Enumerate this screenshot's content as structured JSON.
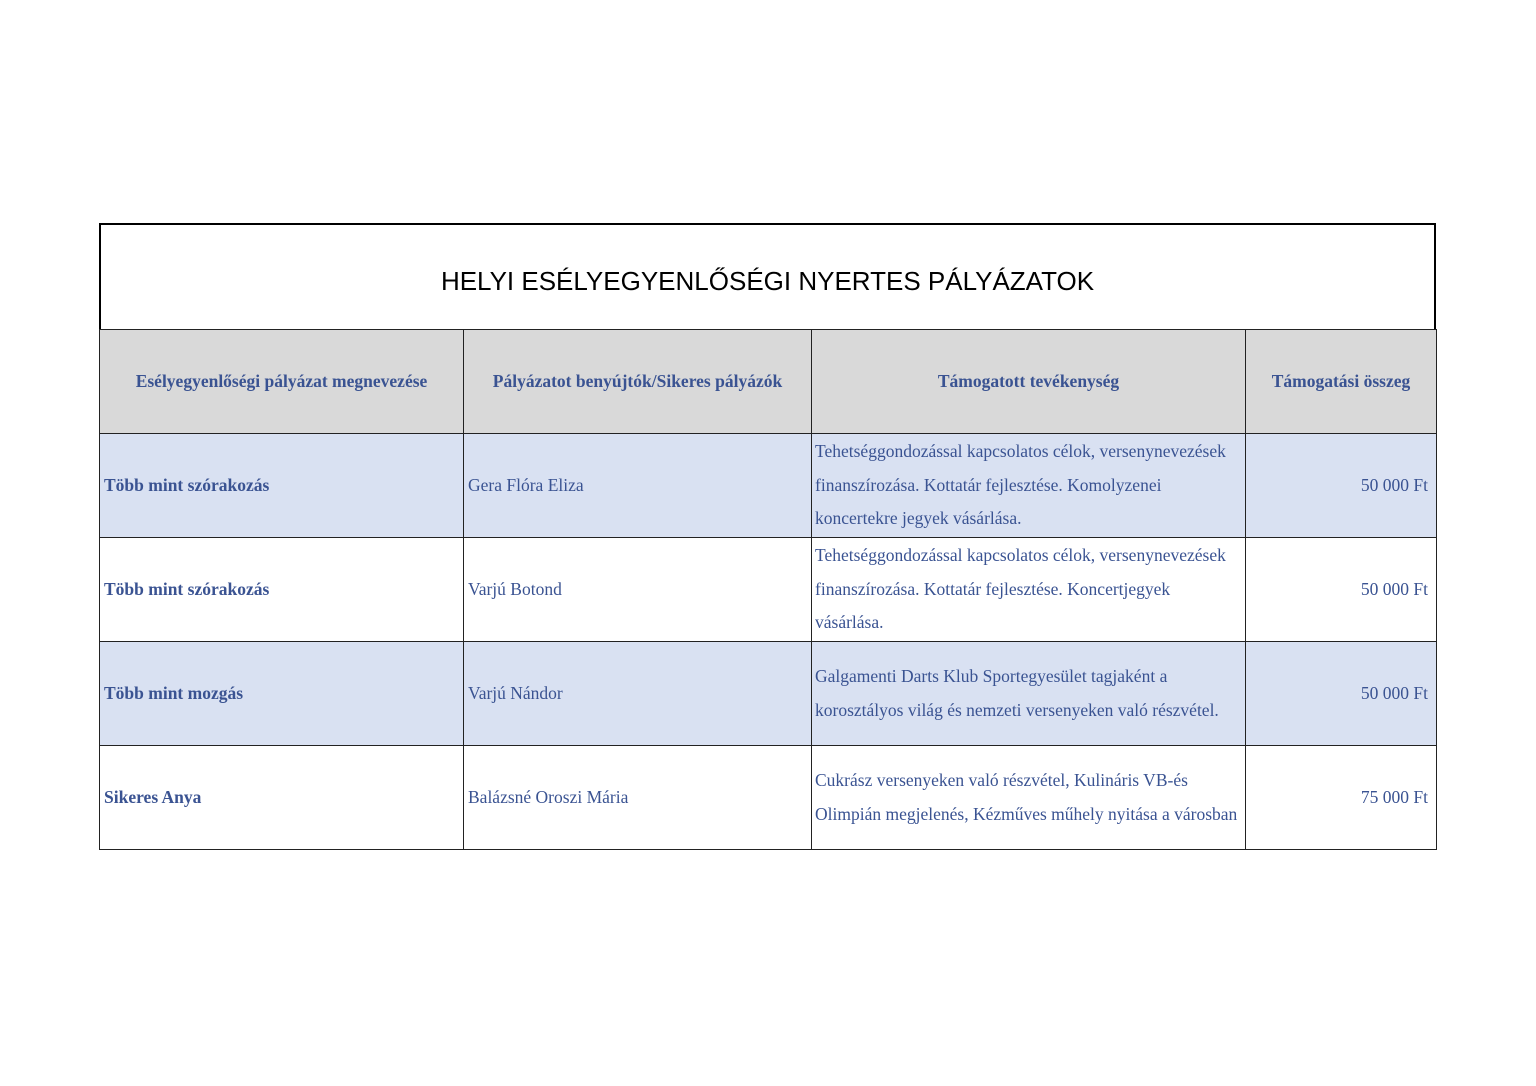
{
  "title": "HELYI ESÉLYEGYENLŐSÉGI NYERTES PÁLYÁZATOK",
  "table": {
    "headers": [
      "Esélyegyenlőségi pályázat megnevezése",
      "Pályázatot benyújtók/Sikeres pályázók",
      "Támogatott tevékenység",
      "Támogatási összeg"
    ],
    "rows": [
      {
        "name": "Több mint szórakozás",
        "applicant": "Gera Flóra Eliza",
        "activity": "Tehetséggondozással kapcsolatos célok, versenynevezések finanszírozása. Kottatár fejlesztése. Komolyzenei koncertekre jegyek vásárlása.",
        "amount": "50 000 Ft"
      },
      {
        "name": "Több mint szórakozás",
        "applicant": "Varjú Botond",
        "activity": "Tehetséggondozással kapcsolatos célok, versenynevezések finanszírozása. Kottatár fejlesztése. Koncertjegyek vásárlása.",
        "amount": "50 000 Ft"
      },
      {
        "name": "Több mint mozgás",
        "applicant": "Varjú Nándor",
        "activity": "Galgamenti Darts Klub Sportegyesület tagjaként a korosztályos világ és nemzeti versenyeken való részvétel.",
        "amount": "50 000 Ft"
      },
      {
        "name": "Sikeres Anya",
        "applicant": "Balázsné Oroszi Mária",
        "activity": "Cukrász versenyeken való részvétel, Kulináris VB-és Olimpián megjelenés, Kézműves műhely nyitása a városban",
        "amount": "75 000 Ft"
      }
    ]
  },
  "colors": {
    "text": "#3a5392",
    "header_bg": "#d9d9d9",
    "shaded_row_bg": "#d9e1f2"
  }
}
